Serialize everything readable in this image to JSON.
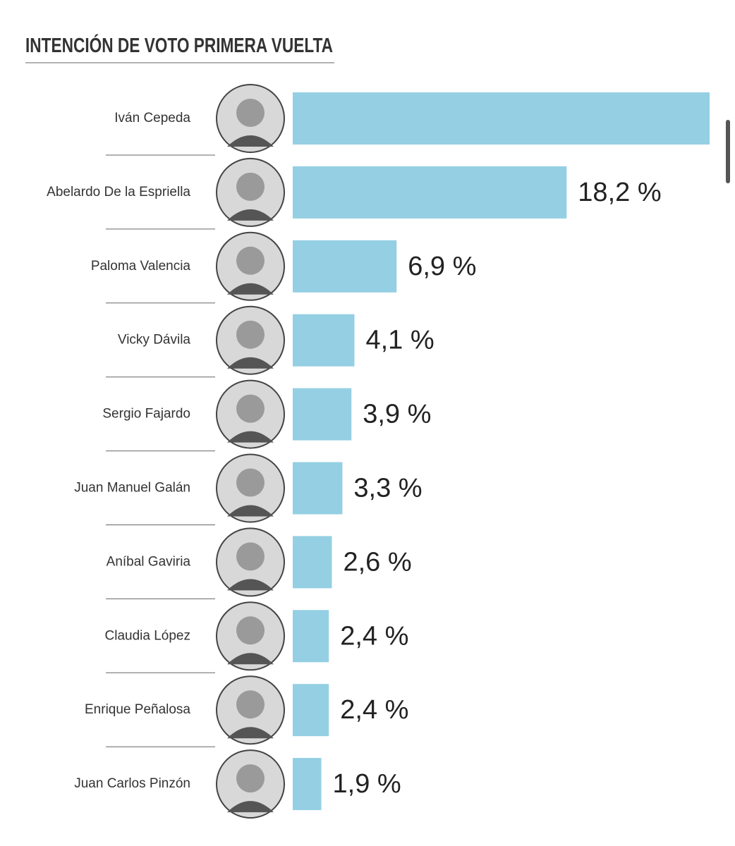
{
  "chart_data": {
    "type": "bar",
    "orientation": "horizontal",
    "title": "INTENCIÓN DE VOTO PRIMERA VUELTA",
    "categories": [
      "Iván Cepeda",
      "Abelardo De la Espriella",
      "Paloma Valencia",
      "Vicky Dávila",
      "Sergio Fajardo",
      "Juan Manuel Galán",
      "Aníbal Gaviria",
      "Claudia López",
      "Enrique Peñalosa",
      "Juan Carlos Pinzón"
    ],
    "values": [
      27.7,
      18.2,
      6.9,
      4.1,
      3.9,
      3.3,
      2.6,
      2.4,
      2.4,
      1.9
    ],
    "value_labels": [
      null,
      "18,2 %",
      "6,9 %",
      "4,1 %",
      "3,9 %",
      "3,3 %",
      "2,6 %",
      "2,4 %",
      "2,4 %",
      "1,9 %"
    ],
    "color": "#94cfe3",
    "xlim": [
      0,
      27.7
    ]
  }
}
